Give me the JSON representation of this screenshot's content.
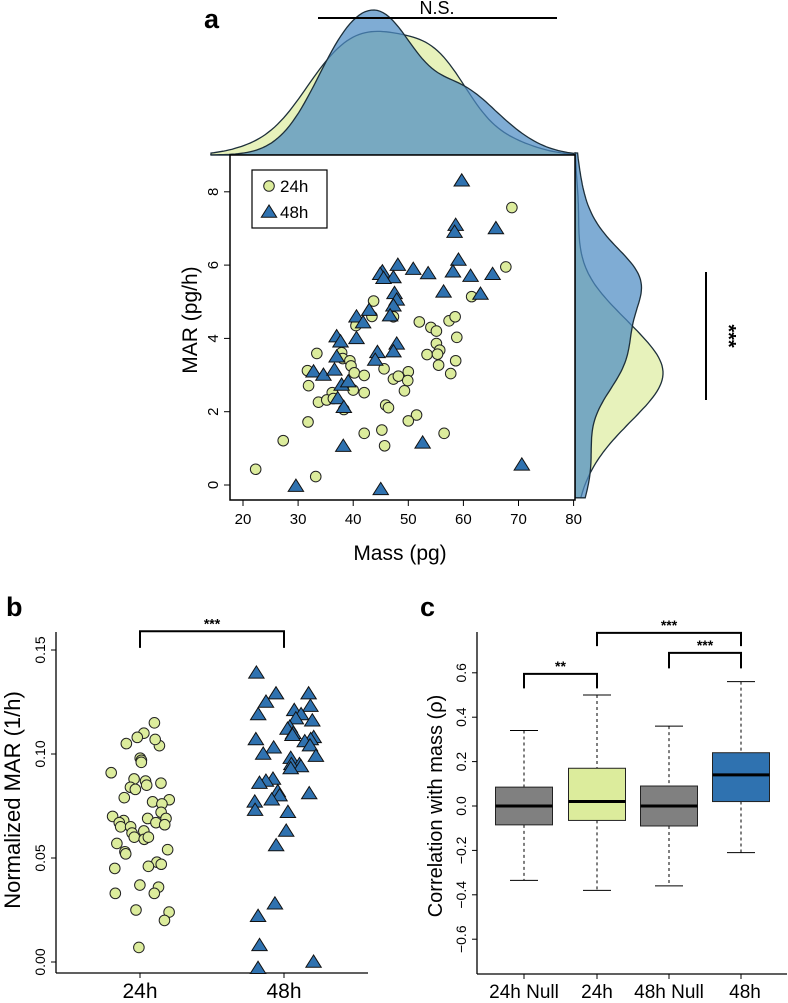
{
  "colors": {
    "h24": "#dcec9c",
    "h48": "#2f72b0",
    "null": "#808080",
    "dens24": "#e4f1b4",
    "dens48": "#4d8cc4"
  },
  "chart_data": [
    {
      "panel": "a",
      "type": "scatter",
      "xlabel": "Mass (pg)",
      "ylabel": "MAR (pg/h)",
      "xlim": [
        17.6,
        80
      ],
      "ylim": [
        -0.35,
        9.06
      ],
      "xticks": [
        20,
        30,
        40,
        50,
        60,
        70,
        80
      ],
      "yticks": [
        0,
        2,
        4,
        6,
        8
      ],
      "legend": {
        "position": "top-left",
        "entries": [
          "24h",
          "48h"
        ]
      },
      "top_annotation": "N.S.",
      "right_annotation": "***",
      "marginal": "density",
      "series": [
        {
          "name": "24h",
          "marker": "circle",
          "points": [
            [
              68.8,
              7.57
            ],
            [
              67.7,
              5.95
            ],
            [
              61.5,
              5.14
            ],
            [
              43.7,
              5.02
            ],
            [
              43.4,
              4.6
            ],
            [
              40.5,
              4.35
            ],
            [
              47.3,
              4.59
            ],
            [
              52.0,
              4.45
            ],
            [
              54.1,
              4.3
            ],
            [
              55.1,
              4.2
            ],
            [
              57.4,
              4.48
            ],
            [
              58.5,
              4.59
            ],
            [
              58.8,
              4.03
            ],
            [
              55.1,
              3.86
            ],
            [
              55.7,
              3.68
            ],
            [
              53.4,
              3.56
            ],
            [
              55.3,
              3.57
            ],
            [
              55.5,
              3.27
            ],
            [
              58.6,
              3.39
            ],
            [
              57.7,
              3.04
            ],
            [
              33.4,
              3.59
            ],
            [
              37.9,
              3.61
            ],
            [
              38.1,
              3.45
            ],
            [
              39.4,
              3.39
            ],
            [
              39.6,
              3.25
            ],
            [
              40.2,
              3.06
            ],
            [
              42.0,
              2.99
            ],
            [
              31.7,
              3.12
            ],
            [
              31.9,
              2.71
            ],
            [
              45.6,
              3.17
            ],
            [
              47.3,
              2.89
            ],
            [
              48.2,
              2.97
            ],
            [
              50.0,
              3.09
            ],
            [
              49.9,
              2.85
            ],
            [
              49.3,
              2.57
            ],
            [
              40.0,
              2.59
            ],
            [
              42.0,
              2.52
            ],
            [
              36.2,
              2.52
            ],
            [
              33.7,
              2.26
            ],
            [
              35.2,
              2.32
            ],
            [
              36.4,
              2.36
            ],
            [
              38.3,
              2.06
            ],
            [
              45.9,
              2.18
            ],
            [
              46.4,
              2.11
            ],
            [
              51.5,
              1.91
            ],
            [
              50.0,
              1.75
            ],
            [
              31.8,
              1.72
            ],
            [
              42.0,
              1.41
            ],
            [
              45.2,
              1.5
            ],
            [
              56.5,
              1.41
            ],
            [
              27.3,
              1.21
            ],
            [
              45.7,
              1.07
            ],
            [
              22.3,
              0.43
            ],
            [
              33.2,
              0.23
            ]
          ]
        },
        {
          "name": "48h",
          "marker": "triangle",
          "points": [
            [
              59.7,
              8.3
            ],
            [
              58.6,
              7.09
            ],
            [
              58.4,
              6.9
            ],
            [
              65.9,
              7.0
            ],
            [
              59.1,
              6.14
            ],
            [
              58.1,
              5.82
            ],
            [
              61.3,
              5.7
            ],
            [
              65.3,
              5.75
            ],
            [
              63.1,
              5.21
            ],
            [
              56.4,
              5.27
            ],
            [
              48.1,
              6.0
            ],
            [
              50.9,
              5.89
            ],
            [
              53.6,
              5.77
            ],
            [
              45.3,
              5.82
            ],
            [
              44.9,
              5.75
            ],
            [
              47.3,
              5.66
            ],
            [
              45.5,
              5.64
            ],
            [
              47.5,
              5.23
            ],
            [
              47.9,
              5.05
            ],
            [
              47.3,
              4.89
            ],
            [
              46.7,
              4.62
            ],
            [
              42.9,
              4.77
            ],
            [
              40.6,
              4.59
            ],
            [
              41.8,
              4.43
            ],
            [
              37.0,
              4.05
            ],
            [
              37.7,
              3.91
            ],
            [
              40.6,
              4.0
            ],
            [
              47.9,
              3.85
            ],
            [
              47.3,
              3.64
            ],
            [
              44.4,
              3.62
            ],
            [
              44.0,
              3.41
            ],
            [
              37.0,
              3.5
            ],
            [
              32.8,
              3.09
            ],
            [
              34.6,
              3.0
            ],
            [
              36.6,
              3.14
            ],
            [
              37.9,
              2.73
            ],
            [
              39.1,
              2.82
            ],
            [
              37.2,
              2.36
            ],
            [
              38.3,
              2.12
            ],
            [
              38.2,
              1.06
            ],
            [
              52.6,
              1.15
            ],
            [
              70.6,
              0.55
            ],
            [
              29.6,
              -0.03
            ],
            [
              45.0,
              -0.12
            ]
          ]
        }
      ]
    },
    {
      "panel": "b",
      "type": "scatter",
      "ylabel": "Normalized MAR (1/h)",
      "categories": [
        "24h",
        "48h"
      ],
      "ylim": [
        -0.005,
        0.16
      ],
      "yticks": [
        "0.00",
        "0.05",
        "0.10",
        "0.15"
      ],
      "annotation": {
        "from": "24h",
        "to": "48h",
        "label": "***",
        "y": 0.159
      },
      "series": [
        {
          "name": "24h",
          "marker": "circle",
          "values": [
            0.115,
            0.11,
            0.108,
            0.105,
            0.104,
            0.107,
            0.098,
            0.097,
            0.096,
            0.091,
            0.087,
            0.085,
            0.088,
            0.086,
            0.084,
            0.083,
            0.079,
            0.078,
            0.077,
            0.076,
            0.072,
            0.07,
            0.069,
            0.069,
            0.068,
            0.067,
            0.067,
            0.066,
            0.065,
            0.065,
            0.063,
            0.062,
            0.06,
            0.059,
            0.057,
            0.06,
            0.054,
            0.053,
            0.052,
            0.048,
            0.047,
            0.046,
            0.045,
            0.037,
            0.036,
            0.033,
            0.033,
            0.025,
            0.024,
            0.02,
            0.007
          ]
        },
        {
          "name": "48h",
          "marker": "triangle",
          "values": [
            0.139,
            0.129,
            0.129,
            0.125,
            0.123,
            0.121,
            0.119,
            0.119,
            0.117,
            0.116,
            0.113,
            0.112,
            0.11,
            0.109,
            0.108,
            0.107,
            0.107,
            0.106,
            0.104,
            0.103,
            0.1,
            0.099,
            0.098,
            0.095,
            0.095,
            0.094,
            0.093,
            0.088,
            0.087,
            0.086,
            0.082,
            0.081,
            0.08,
            0.078,
            0.077,
            0.073,
            0.072,
            0.063,
            0.056,
            0.028,
            0.022,
            0.008,
            0.0,
            -0.003
          ]
        }
      ]
    },
    {
      "panel": "c",
      "type": "box",
      "ylabel": "Correlation with mass (ρ)",
      "categories": [
        "24h Null",
        "24h",
        "48h Null",
        "48h"
      ],
      "ylim": [
        -0.75,
        0.78
      ],
      "yticks": [
        "−0.6",
        "−0.4",
        "−0.2",
        "0.0",
        "0.2",
        "0.4",
        "0.6"
      ],
      "ytick_values": [
        -0.6,
        -0.4,
        -0.2,
        0.0,
        0.2,
        0.4,
        0.6
      ],
      "boxes": [
        {
          "name": "24h Null",
          "whisker_low": -0.335,
          "q1": -0.085,
          "median": 0.0,
          "q3": 0.085,
          "whisker_high": 0.34,
          "color": "null"
        },
        {
          "name": "24h",
          "whisker_low": -0.38,
          "q1": -0.065,
          "median": 0.02,
          "q3": 0.17,
          "whisker_high": 0.5,
          "color": "h24"
        },
        {
          "name": "48h Null",
          "whisker_low": -0.36,
          "q1": -0.09,
          "median": 0.0,
          "q3": 0.09,
          "whisker_high": 0.36,
          "color": "null"
        },
        {
          "name": "48h",
          "whisker_low": -0.21,
          "q1": 0.02,
          "median": 0.14,
          "q3": 0.24,
          "whisker_high": 0.56,
          "color": "h48"
        }
      ],
      "annotations": [
        {
          "from": 0,
          "to": 1,
          "label": "**",
          "y": 0.595,
          "leg": 0.53
        },
        {
          "from": 1,
          "to": 3,
          "label": "***",
          "y": 0.78,
          "leg": 0.72
        },
        {
          "from": 2,
          "to": 3,
          "label": "***",
          "y": 0.69,
          "leg": 0.62
        }
      ]
    }
  ],
  "panel_labels": [
    "a",
    "b",
    "c"
  ]
}
